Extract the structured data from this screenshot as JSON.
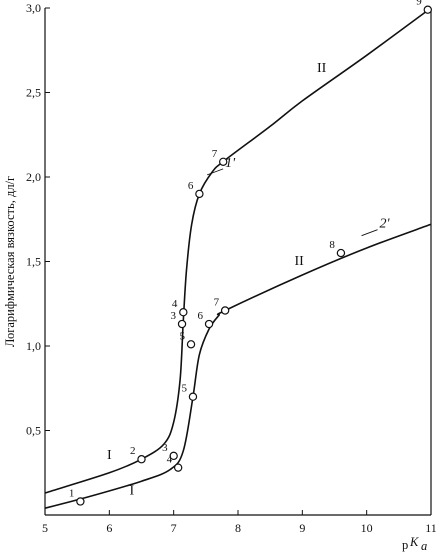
{
  "chart_data": {
    "type": "line",
    "title": "",
    "xlabel": "pK_a",
    "ylabel": "Логарифмическая вязкость, дл/г",
    "xlim": [
      5,
      11
    ],
    "ylim": [
      0,
      3.0
    ],
    "x_ticks": [
      5,
      6,
      7,
      8,
      9,
      10,
      11
    ],
    "y_ticks": [
      {
        "value": 0.5,
        "label": "0,5"
      },
      {
        "value": 1.0,
        "label": "1,0"
      },
      {
        "value": 1.5,
        "label": "1,5"
      },
      {
        "value": 2.0,
        "label": "2,0"
      },
      {
        "value": 2.5,
        "label": "2,5"
      },
      {
        "value": 3.0,
        "label": "3,0"
      }
    ],
    "x_label_main": "K",
    "x_label_prefix": "p",
    "x_label_sub": "a",
    "curves": [
      {
        "name": "1'",
        "label_pos": [
          7.8,
          2.06
        ],
        "line": [
          [
            5.0,
            0.13
          ],
          [
            6.0,
            0.25
          ],
          [
            6.5,
            0.33
          ],
          [
            6.85,
            0.42
          ],
          [
            7.0,
            0.55
          ],
          [
            7.1,
            0.8
          ],
          [
            7.15,
            1.15
          ],
          [
            7.2,
            1.45
          ],
          [
            7.28,
            1.72
          ],
          [
            7.4,
            1.9
          ],
          [
            7.6,
            2.03
          ],
          [
            7.8,
            2.1
          ],
          [
            8.5,
            2.3
          ],
          [
            9.0,
            2.45
          ],
          [
            10.0,
            2.72
          ],
          [
            11.0,
            3.0
          ]
        ],
        "points": [
          {
            "x": 6.5,
            "y": 0.33,
            "label": "2"
          },
          {
            "x": 7.15,
            "y": 1.2,
            "label": "4"
          },
          {
            "x": 7.13,
            "y": 1.13,
            "label": "3"
          },
          {
            "x": 7.4,
            "y": 1.9,
            "label": "6"
          },
          {
            "x": 7.77,
            "y": 2.09,
            "label": "7"
          },
          {
            "x": 10.95,
            "y": 2.99,
            "label": "9"
          }
        ]
      },
      {
        "name": "2'",
        "label_pos": [
          10.2,
          1.7
        ],
        "line": [
          [
            5.0,
            0.04
          ],
          [
            5.7,
            0.11
          ],
          [
            6.5,
            0.2
          ],
          [
            6.95,
            0.27
          ],
          [
            7.15,
            0.38
          ],
          [
            7.3,
            0.7
          ],
          [
            7.4,
            0.95
          ],
          [
            7.55,
            1.1
          ],
          [
            7.7,
            1.18
          ],
          [
            7.8,
            1.21
          ],
          [
            9.0,
            1.42
          ],
          [
            10.0,
            1.58
          ],
          [
            11.0,
            1.72
          ]
        ],
        "points": [
          {
            "x": 5.55,
            "y": 0.08,
            "label": "1"
          },
          {
            "x": 7.0,
            "y": 0.35,
            "label": "3"
          },
          {
            "x": 7.07,
            "y": 0.28,
            "label": "4"
          },
          {
            "x": 7.3,
            "y": 0.7,
            "label": "5"
          },
          {
            "x": 7.27,
            "y": 1.01,
            "label": "5"
          },
          {
            "x": 7.55,
            "y": 1.13,
            "label": "6"
          },
          {
            "x": 7.8,
            "y": 1.21,
            "label": "7"
          },
          {
            "x": 9.6,
            "y": 1.55,
            "label": "8"
          }
        ]
      }
    ],
    "region_labels": [
      {
        "text": "I",
        "x": 6.0,
        "y": 0.33
      },
      {
        "text": "I",
        "x": 6.35,
        "y": 0.12
      },
      {
        "text": "II",
        "x": 9.3,
        "y": 2.62
      },
      {
        "text": "II",
        "x": 8.95,
        "y": 1.48
      }
    ],
    "colors": {
      "ink": "#111111",
      "background": "#ffffff"
    }
  }
}
